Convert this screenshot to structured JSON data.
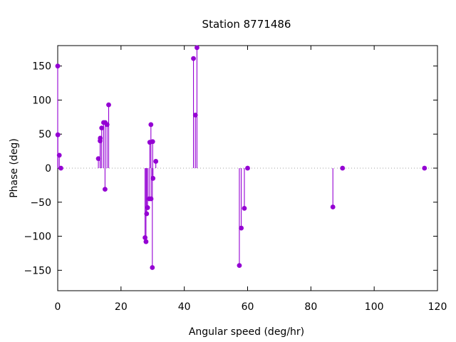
{
  "chart_data": {
    "type": "scatter",
    "style": "impulses-with-points",
    "title": "Station 8771486",
    "xlabel": "Angular speed (deg/hr)",
    "ylabel": "Phase (deg)",
    "xlim": [
      0,
      120
    ],
    "ylim": [
      -180,
      180
    ],
    "xticks": [
      0,
      20,
      40,
      60,
      80,
      100,
      120
    ],
    "yticks": [
      -150,
      -100,
      -50,
      0,
      50,
      100,
      150
    ],
    "zero_line": true,
    "grid": false,
    "color": "#9400d3",
    "points": [
      {
        "x": 0.0,
        "y": 150
      },
      {
        "x": 0.04,
        "y": 49
      },
      {
        "x": 0.5,
        "y": 19
      },
      {
        "x": 1.0,
        "y": 0
      },
      {
        "x": 12.85,
        "y": 14
      },
      {
        "x": 13.4,
        "y": 40
      },
      {
        "x": 13.45,
        "y": 44
      },
      {
        "x": 13.9,
        "y": 59
      },
      {
        "x": 14.5,
        "y": 67
      },
      {
        "x": 14.95,
        "y": -31
      },
      {
        "x": 15.0,
        "y": 67
      },
      {
        "x": 15.6,
        "y": 64
      },
      {
        "x": 16.1,
        "y": 93
      },
      {
        "x": 27.6,
        "y": -102
      },
      {
        "x": 27.9,
        "y": -108
      },
      {
        "x": 28.1,
        "y": -67
      },
      {
        "x": 28.4,
        "y": -58
      },
      {
        "x": 28.9,
        "y": -45
      },
      {
        "x": 29.1,
        "y": 38
      },
      {
        "x": 29.45,
        "y": 64
      },
      {
        "x": 29.5,
        "y": -45
      },
      {
        "x": 29.9,
        "y": -146
      },
      {
        "x": 30.0,
        "y": 39
      },
      {
        "x": 30.1,
        "y": -15
      },
      {
        "x": 31.0,
        "y": 10
      },
      {
        "x": 42.9,
        "y": 161
      },
      {
        "x": 43.5,
        "y": 78
      },
      {
        "x": 44.0,
        "y": 177
      },
      {
        "x": 57.4,
        "y": -143
      },
      {
        "x": 58.0,
        "y": -88
      },
      {
        "x": 58.98,
        "y": -59
      },
      {
        "x": 60.0,
        "y": 0
      },
      {
        "x": 86.95,
        "y": -57
      },
      {
        "x": 90.0,
        "y": 0
      },
      {
        "x": 115.9,
        "y": 0
      }
    ]
  }
}
